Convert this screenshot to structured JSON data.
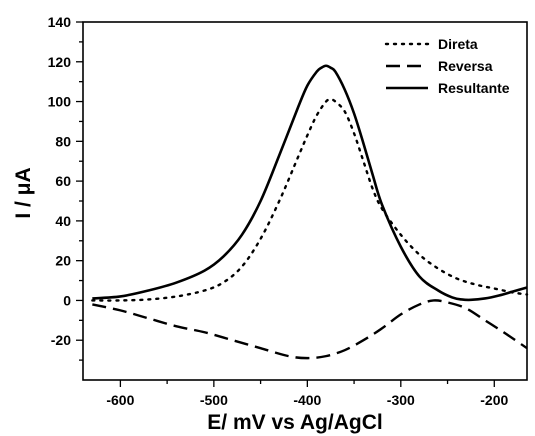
{
  "chart_data": {
    "type": "line",
    "xlabel": "E/ mV vs Ag/AgCl",
    "ylabel": "I / μA",
    "xlim": [
      -640,
      -165
    ],
    "ylim": [
      -40,
      140
    ],
    "x_ticks": [
      -600,
      -500,
      -400,
      -300,
      -200
    ],
    "y_ticks": [
      -20,
      0,
      20,
      40,
      60,
      80,
      100,
      120,
      140
    ],
    "x_tick_labels": [
      "-600",
      "-500",
      "-400",
      "-300",
      "-200"
    ],
    "y_tick_labels": [
      "-20",
      "0",
      "20",
      "40",
      "60",
      "80",
      "100",
      "120",
      "140"
    ],
    "legend_position": "top-right",
    "grid": false,
    "series": [
      {
        "name": "Direta",
        "style": "dotted",
        "color": "#000000",
        "x": [
          -630,
          -600,
          -570,
          -540,
          -510,
          -490,
          -470,
          -450,
          -430,
          -410,
          -400,
          -390,
          -380,
          -375,
          -370,
          -360,
          -350,
          -340,
          -330,
          -320,
          -300,
          -280,
          -260,
          -240,
          -220,
          -200,
          -180,
          -165
        ],
        "y": [
          0,
          0,
          0.5,
          2,
          5,
          9,
          17,
          31,
          50,
          72,
          83,
          93,
          100,
          101,
          100,
          95,
          84,
          70,
          56,
          46,
          33,
          23,
          16,
          11,
          8,
          6,
          4,
          3
        ]
      },
      {
        "name": "Reversa",
        "style": "dashed",
        "color": "#000000",
        "x": [
          -630,
          -600,
          -570,
          -540,
          -510,
          -480,
          -450,
          -420,
          -400,
          -380,
          -360,
          -340,
          -320,
          -300,
          -280,
          -265,
          -250,
          -230,
          -210,
          -190,
          -165
        ],
        "y": [
          -2,
          -5,
          -9,
          -13,
          -16,
          -20,
          -24,
          -28,
          -29,
          -28,
          -25,
          -20,
          -14,
          -7,
          -2,
          0,
          -1,
          -4,
          -10,
          -16,
          -24
        ]
      },
      {
        "name": "Resultante",
        "style": "solid",
        "color": "#000000",
        "x": [
          -630,
          -600,
          -570,
          -540,
          -510,
          -490,
          -470,
          -450,
          -430,
          -410,
          -400,
          -390,
          -385,
          -380,
          -375,
          -370,
          -360,
          -350,
          -340,
          -330,
          -320,
          -300,
          -280,
          -260,
          -245,
          -235,
          -225,
          -210,
          -195,
          -180,
          -165
        ],
        "y": [
          1,
          2,
          5,
          9,
          15,
          22,
          33,
          50,
          73,
          97,
          108,
          115,
          117,
          118,
          117,
          115,
          106,
          94,
          79,
          63,
          48,
          27,
          12,
          5,
          1.5,
          0.5,
          0.3,
          1,
          2.5,
          4.5,
          6.5
        ]
      }
    ]
  }
}
